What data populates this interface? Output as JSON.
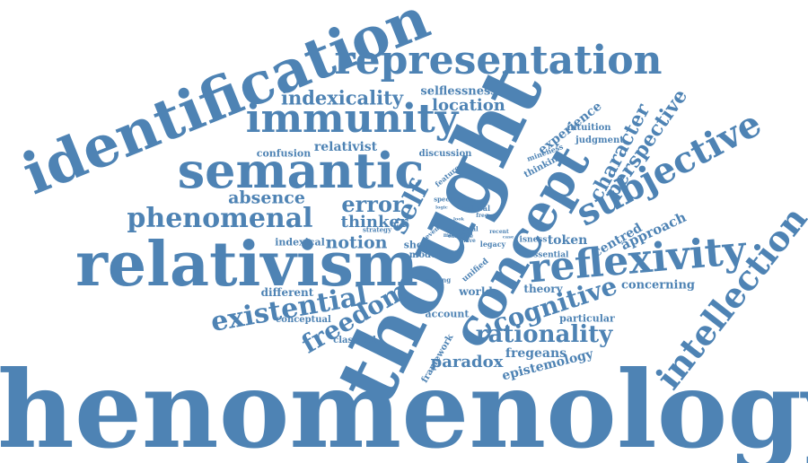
{
  "color": "#4e83b4",
  "words": [
    {
      "t": "phenomenology"
    },
    {
      "t": "thought"
    },
    {
      "t": "identification"
    },
    {
      "t": "relativism"
    },
    {
      "t": "semantic"
    },
    {
      "t": "concept"
    },
    {
      "t": "representation"
    },
    {
      "t": "immunity"
    },
    {
      "t": "reflexivity"
    },
    {
      "t": "intellection"
    },
    {
      "t": "subjective"
    },
    {
      "t": "phenomenal"
    },
    {
      "t": "existential"
    },
    {
      "t": "freedom"
    },
    {
      "t": "self"
    },
    {
      "t": "cognitive"
    },
    {
      "t": "rationality"
    },
    {
      "t": "character"
    },
    {
      "t": "perspective"
    },
    {
      "t": "indexicality"
    },
    {
      "t": "error"
    },
    {
      "t": "notion"
    },
    {
      "t": "location"
    },
    {
      "t": "absence"
    },
    {
      "t": "thinker"
    },
    {
      "t": "paradox"
    },
    {
      "t": "fregeans"
    },
    {
      "t": "epistemology"
    },
    {
      "t": "approach"
    },
    {
      "t": "centred"
    },
    {
      "t": "experience"
    },
    {
      "t": "token"
    },
    {
      "t": "concerning"
    },
    {
      "t": "selflessness"
    },
    {
      "t": "relativist"
    },
    {
      "t": "confusion"
    },
    {
      "t": "different"
    },
    {
      "t": "indexical"
    },
    {
      "t": "theory"
    },
    {
      "t": "world"
    },
    {
      "t": "particular"
    },
    {
      "t": "account"
    },
    {
      "t": "conceptual"
    },
    {
      "t": "classical"
    },
    {
      "t": "discussion"
    },
    {
      "t": "intuition"
    },
    {
      "t": "judgment"
    },
    {
      "t": "thinking"
    },
    {
      "t": "mineness"
    },
    {
      "t": "model"
    },
    {
      "t": "shot"
    },
    {
      "t": "framework"
    },
    {
      "t": "unified"
    },
    {
      "t": "essential"
    },
    {
      "t": "isness"
    },
    {
      "t": "feature"
    },
    {
      "t": "specific"
    },
    {
      "t": "strategy"
    },
    {
      "t": "critical"
    },
    {
      "t": "legacy"
    },
    {
      "t": "reading"
    },
    {
      "t": "mental"
    },
    {
      "t": "examine"
    },
    {
      "t": "recent"
    },
    {
      "t": "even"
    },
    {
      "t": "last"
    },
    {
      "t": "most"
    },
    {
      "t": "have"
    },
    {
      "t": "tied"
    },
    {
      "t": "free"
    },
    {
      "t": "logic"
    },
    {
      "t": "look"
    },
    {
      "t": "case"
    }
  ]
}
